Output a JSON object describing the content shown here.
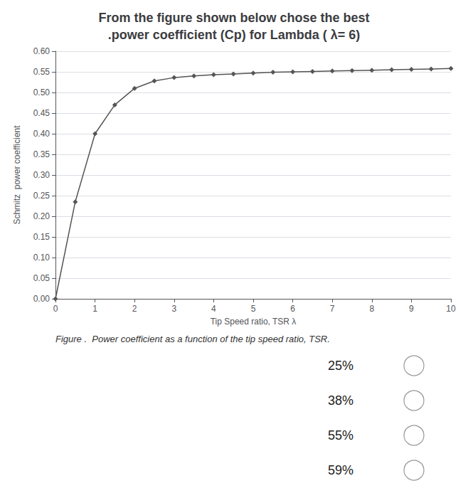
{
  "chart_data": {
    "type": "line",
    "title": "From the figure shown below chose the best\n.power coefficient (Cp) for Lambda ( λ= 6)",
    "xlabel": "Tip Speed ratio, TSR λ",
    "ylabel": "Schmitz  power coefficient",
    "annotations": [
      "Figure .  Power coefficient as a function of the tip speed ratio, TSR.",
      "25%",
      "38%",
      "55%",
      "59%"
    ],
    "x": [
      0,
      0.5,
      1.0,
      1.5,
      2.0,
      2.5,
      3.0,
      3.5,
      4.0,
      4.5,
      5.0,
      5.5,
      6.0,
      6.5,
      7.0,
      7.5,
      8.0,
      8.5,
      9.0,
      9.5,
      10.0
    ],
    "values": [
      0.0,
      0.235,
      0.4,
      0.47,
      0.51,
      0.528,
      0.536,
      0.54,
      0.543,
      0.545,
      0.547,
      0.549,
      0.55,
      0.551,
      0.552,
      0.553,
      0.554,
      0.555,
      0.556,
      0.557,
      0.558
    ],
    "color": "#555555",
    "marker": "diamond",
    "xlim": [
      0,
      10
    ],
    "xticks": [
      0,
      1,
      2,
      3,
      4,
      5,
      6,
      7,
      8,
      9,
      10
    ],
    "ylim": [
      0,
      0.6
    ],
    "yticks": [
      {
        "value": 0,
        "label": "0.00"
      },
      0.05,
      {
        "value": 0.1,
        "label": "0.10"
      },
      0.15,
      {
        "value": 0.2,
        "label": "0.20"
      },
      0.25,
      {
        "value": 0.3,
        "label": "0.30"
      },
      0.35,
      {
        "value": 0.4,
        "label": "0.40"
      },
      0.45,
      {
        "value": 0.5,
        "label": "0.50"
      },
      0.55,
      {
        "value": 0.6,
        "label": "0.60"
      }
    ],
    "grid": true
  }
}
